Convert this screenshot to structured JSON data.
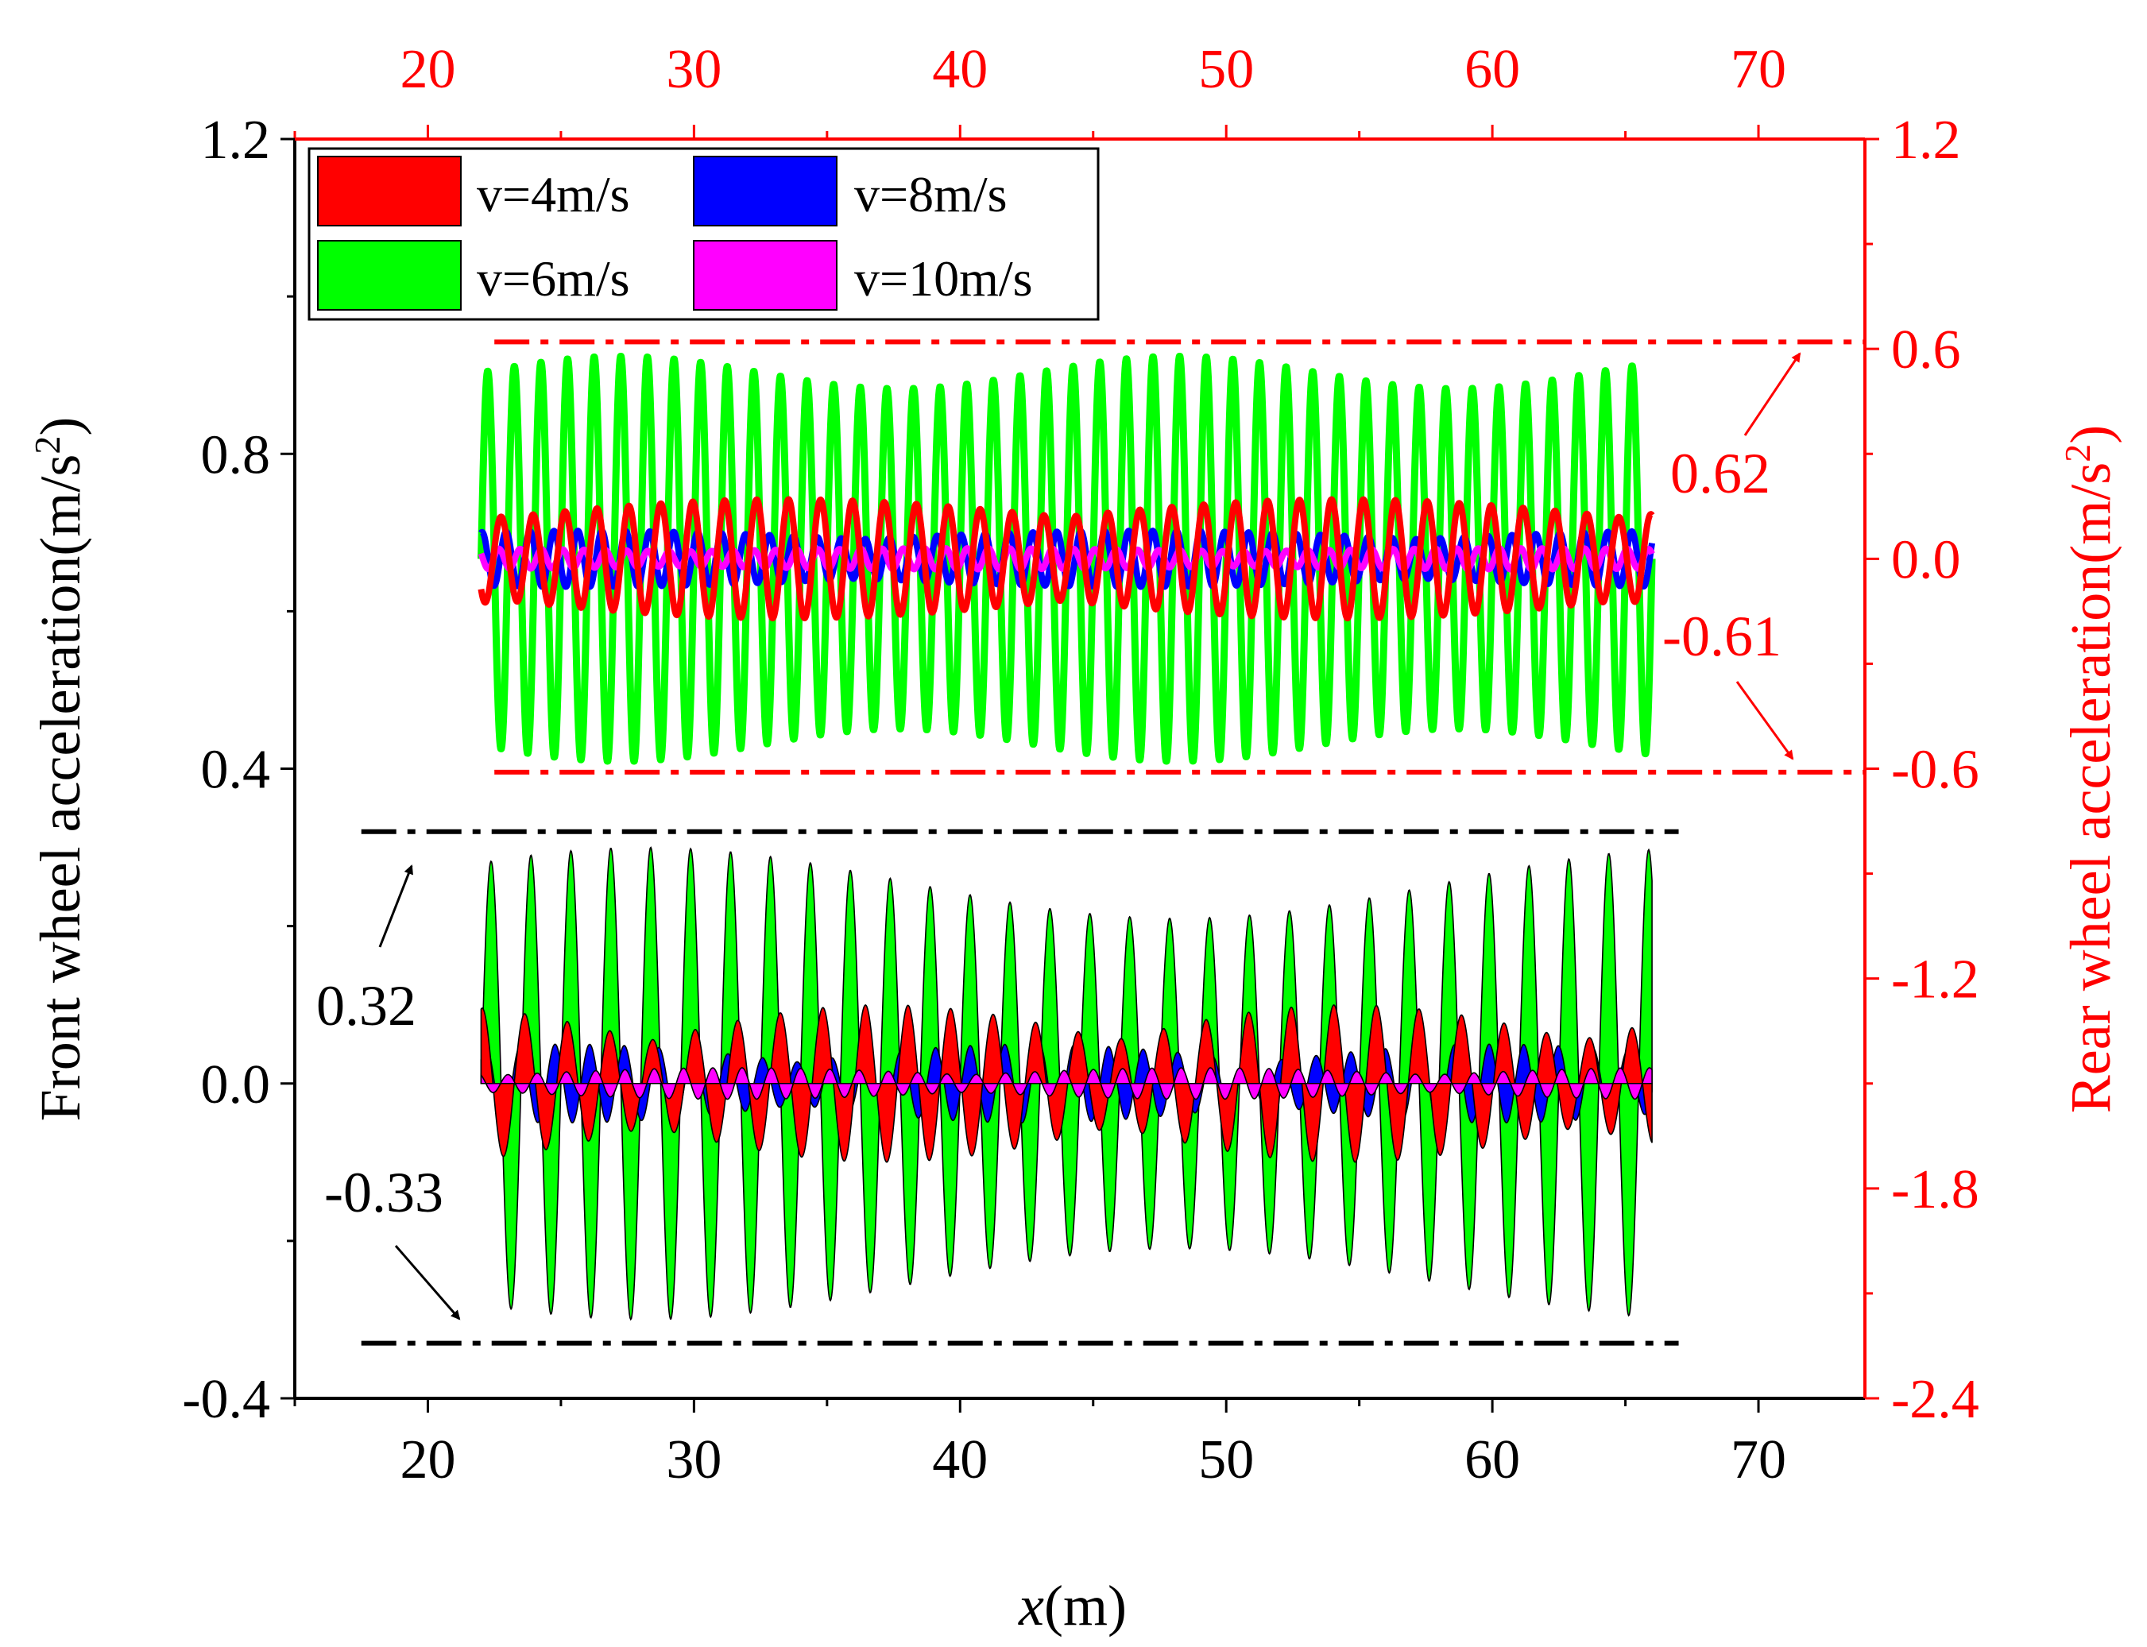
{
  "chart_data": {
    "type": "line",
    "title": "",
    "xlabel_var": "x",
    "xlabel_unit": "(m)",
    "ylabel_left": "Front wheel acceleration(m/s",
    "ylabel_right": "Rear wheel acceleration(m/s",
    "ylabel_sup": "2",
    "ylabel_close": ")",
    "xlim": [
      15,
      74
    ],
    "ylim_left": [
      -0.4,
      1.2
    ],
    "ylim_right": [
      -2.4,
      1.2
    ],
    "x_ticks": [
      "20",
      "30",
      "40",
      "50",
      "60",
      "70"
    ],
    "x_top_ticks": [
      "20",
      "30",
      "40",
      "50",
      "60",
      "70"
    ],
    "y_left_ticks": [
      "-0.4",
      "0.0",
      "0.4",
      "0.8",
      "1.2"
    ],
    "y_right_ticks": [
      "-2.4",
      "-1.8",
      "-1.2",
      "-0.6",
      "0.0",
      "0.6",
      "1.2"
    ],
    "legend": [
      {
        "label": "v=4m/s",
        "color": "#ff0000"
      },
      {
        "label": "v=8m/s",
        "color": "#0000ff"
      },
      {
        "label": "v=6m/s",
        "color": "#00ff00"
      },
      {
        "label": "v=10m/s",
        "color": "#ff00ff"
      }
    ],
    "x_range_data": [
      22,
      66
    ],
    "front_wheel": {
      "axis": "left",
      "series": [
        {
          "name": "v=6m/s",
          "color": "#00ff00",
          "amplitude": 0.3,
          "period": 1.5
        },
        {
          "name": "v=8m/s",
          "color": "#0000ff",
          "amplitude": 0.05,
          "period": 1.3
        },
        {
          "name": "v=4m/s",
          "color": "#ff0000",
          "amplitude": 0.1,
          "period": 1.6
        },
        {
          "name": "v=10m/s",
          "color": "#ff00ff",
          "amplitude": 0.02,
          "period": 1.1
        }
      ],
      "upper_bound": 0.32,
      "lower_bound": -0.33
    },
    "rear_wheel": {
      "axis": "right",
      "offset": 0.0,
      "series": [
        {
          "name": "v=6m/s",
          "color": "#00ff00",
          "amplitude": 0.58,
          "period": 1.0
        },
        {
          "name": "v=8m/s",
          "color": "#0000ff",
          "amplitude": 0.08,
          "period": 0.9
        },
        {
          "name": "v=10m/s",
          "color": "#ff00ff",
          "amplitude": 0.03,
          "period": 0.8
        },
        {
          "name": "v=4m/s",
          "color": "#ff0000",
          "amplitude": 0.17,
          "period": 1.2
        }
      ],
      "upper_bound": 0.62,
      "lower_bound": -0.61
    },
    "annotations": {
      "front_upper": "0.32",
      "front_lower": "-0.33",
      "rear_upper": "0.62",
      "rear_lower": "-0.61"
    }
  }
}
